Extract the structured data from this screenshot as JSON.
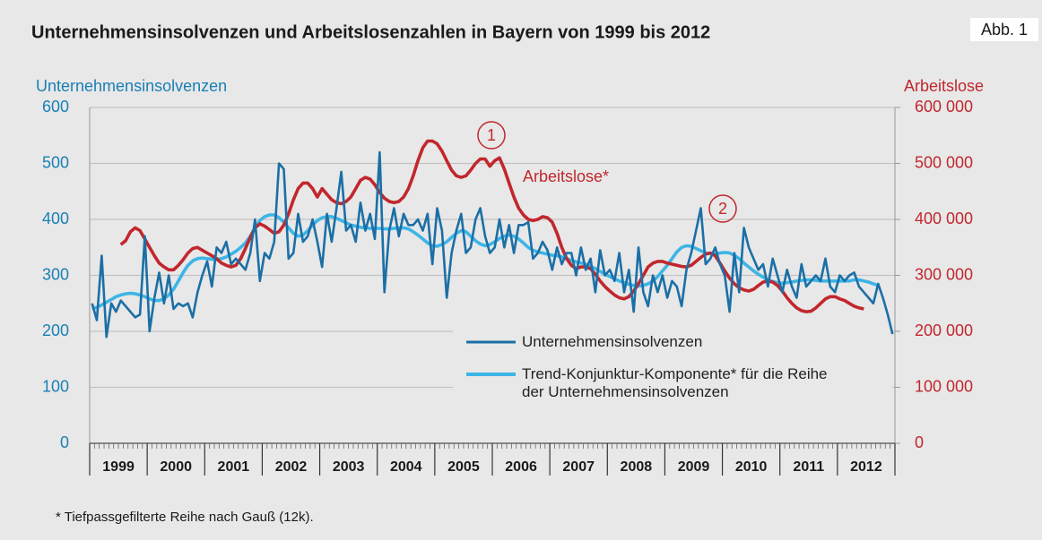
{
  "chart_data": {
    "type": "line",
    "title": "Unternehmensinsolvenzen und Arbeitslosenzahlen in Bayern von 1999 bis 2012",
    "figure_label": "Abb. 1",
    "y_label": "Unternehmensinsolvenzen",
    "y2_label": "Arbeitslose",
    "footnote": "* Tiefpassgefilterte Reihe nach Gauß (12k).",
    "annotations": [
      "1",
      "2"
    ],
    "categories": [
      "1999",
      "2000",
      "2001",
      "2002",
      "2003",
      "2004",
      "2005",
      "2006",
      "2007",
      "2008",
      "2009",
      "2010",
      "2011",
      "2012"
    ],
    "ylim": [
      0,
      600
    ],
    "yticks": [
      0,
      100,
      200,
      300,
      400,
      500,
      600
    ],
    "y2lim": [
      0,
      600000
    ],
    "y2ticks": [
      0,
      {
        "value": 100000,
        "label": "100 000"
      },
      {
        "value": 200000,
        "label": "200 000"
      },
      {
        "value": 300000,
        "label": "300 000"
      },
      {
        "value": 400000,
        "label": "400 000"
      },
      {
        "value": 500000,
        "label": "500 000"
      },
      {
        "value": 600000,
        "label": "600 000"
      }
    ],
    "grid": true,
    "series": [
      {
        "name": "Unternehmensinsolvenzen",
        "color": "#1b6fa6",
        "values": [
          [
            250,
            220,
            335,
            190,
            250,
            235,
            255,
            245,
            235,
            225,
            230,
            370
          ],
          [
            200,
            260,
            305,
            250,
            300,
            240,
            250,
            245,
            250,
            225,
            270,
            300
          ],
          [
            325,
            280,
            350,
            340,
            360,
            320,
            330,
            320,
            310,
            340,
            400,
            290
          ],
          [
            340,
            330,
            360,
            500,
            490,
            330,
            340,
            410,
            360,
            370,
            400,
            360
          ],
          [
            315,
            410,
            360,
            420,
            485,
            380,
            390,
            360,
            430,
            380,
            410,
            365
          ],
          [
            520,
            270,
            380,
            420,
            370,
            410,
            390,
            390,
            400,
            380,
            410,
            320
          ],
          [
            420,
            380,
            260,
            340,
            380,
            410,
            340,
            350,
            400,
            420,
            370,
            340
          ],
          [
            350,
            400,
            350,
            390,
            340,
            390,
            390,
            395,
            330,
            340,
            360,
            345
          ],
          [
            310,
            350,
            320,
            340,
            340,
            300,
            350,
            310,
            330,
            270,
            345,
            300
          ],
          [
            310,
            290,
            340,
            270,
            310,
            235,
            350,
            270,
            245,
            300,
            270,
            300
          ],
          [
            260,
            290,
            280,
            245,
            310,
            340,
            380,
            420,
            320,
            330,
            350,
            320
          ],
          [
            300,
            235,
            340,
            270,
            385,
            350,
            330,
            310,
            320,
            280,
            330,
            300
          ],
          [
            270,
            310,
            280,
            260,
            320,
            280,
            290,
            300,
            290,
            330,
            280,
            270
          ],
          [
            300,
            290,
            300,
            305,
            280,
            270,
            260,
            250,
            285,
            260,
            230,
            195
          ]
        ]
      },
      {
        "name": "Trend-Konjunktur-Komponente* für die Reihe der Unternehmensinsolvenzen",
        "color": "#3db5e6",
        "values": [
          [
            240,
            243,
            247,
            252,
            257,
            262,
            265,
            267,
            268,
            267,
            265,
            262
          ],
          [
            258,
            255,
            255,
            258,
            265,
            275,
            290,
            305,
            318,
            326,
            330,
            331
          ],
          [
            330,
            329,
            328,
            330,
            333,
            338,
            343,
            350,
            358,
            370,
            385,
            398
          ],
          [
            405,
            408,
            408,
            403,
            395,
            385,
            375,
            370,
            372,
            380,
            390,
            398
          ],
          [
            403,
            405,
            405,
            402,
            398,
            394,
            390,
            388,
            386,
            385,
            384,
            384
          ],
          [
            384,
            383,
            383,
            384,
            385,
            385,
            383,
            378,
            372,
            365,
            358,
            353
          ],
          [
            352,
            355,
            360,
            368,
            375,
            380,
            378,
            370,
            362,
            356,
            353,
            355
          ],
          [
            360,
            366,
            370,
            372,
            370,
            365,
            358,
            350,
            345,
            342,
            340,
            338
          ],
          [
            336,
            335,
            333,
            330,
            327,
            324,
            322,
            320,
            316,
            312,
            307,
            302
          ],
          [
            298,
            294,
            290,
            287,
            284,
            282,
            281,
            282,
            285,
            290,
            298,
            308
          ],
          [
            318,
            330,
            342,
            350,
            353,
            352,
            348,
            344,
            340,
            339,
            338,
            340
          ],
          [
            341,
            340,
            336,
            330,
            322,
            315,
            308,
            302,
            297,
            292,
            289,
            287
          ],
          [
            286,
            287,
            288,
            290,
            291,
            292,
            292,
            291,
            290,
            290,
            290,
            290
          ],
          [
            290,
            290,
            290,
            292,
            292,
            290,
            288,
            285,
            282,
            null,
            null,
            null
          ]
        ]
      },
      {
        "name": "Arbeitslose*",
        "color": "#c1272d",
        "axis": "y2",
        "values": [
          [
            null,
            null,
            null,
            null,
            null,
            null,
            355000,
            362000,
            378000,
            385000,
            380000,
            365000
          ],
          [
            350000,
            335000,
            322000,
            315000,
            310000,
            310000,
            318000,
            328000,
            340000,
            348000,
            350000,
            345000
          ],
          [
            340000,
            335000,
            330000,
            322000,
            318000,
            315000,
            318000,
            330000,
            348000,
            368000,
            385000,
            392000
          ],
          [
            388000,
            382000,
            375000,
            378000,
            390000,
            410000,
            435000,
            455000,
            465000,
            465000,
            455000,
            440000
          ],
          [
            455000,
            445000,
            435000,
            430000,
            428000,
            432000,
            440000,
            455000,
            470000,
            475000,
            472000,
            462000
          ],
          [
            448000,
            438000,
            432000,
            430000,
            432000,
            440000,
            455000,
            478000,
            505000,
            528000,
            540000,
            540000
          ],
          [
            535000,
            522000,
            505000,
            488000,
            478000,
            475000,
            478000,
            488000,
            500000,
            508000,
            508000,
            495000
          ],
          [
            505000,
            510000,
            490000,
            465000,
            440000,
            420000,
            408000,
            400000,
            398000,
            400000,
            405000,
            403000
          ],
          [
            395000,
            375000,
            350000,
            330000,
            318000,
            312000,
            315000,
            315000,
            312000,
            302000,
            290000,
            280000
          ],
          [
            272000,
            265000,
            260000,
            258000,
            262000,
            272000,
            285000,
            300000,
            315000,
            322000,
            325000,
            325000
          ],
          [
            322000,
            320000,
            318000,
            316000,
            315000,
            318000,
            325000,
            332000,
            338000,
            340000,
            335000,
            322000
          ],
          [
            308000,
            295000,
            285000,
            278000,
            274000,
            272000,
            275000,
            282000,
            288000,
            290000,
            288000,
            282000
          ],
          [
            272000,
            260000,
            250000,
            242000,
            237000,
            235000,
            236000,
            242000,
            250000,
            258000,
            262000,
            262000
          ],
          [
            258000,
            255000,
            250000,
            245000,
            242000,
            240000,
            null,
            null,
            null,
            null,
            null,
            null
          ]
        ]
      }
    ]
  }
}
